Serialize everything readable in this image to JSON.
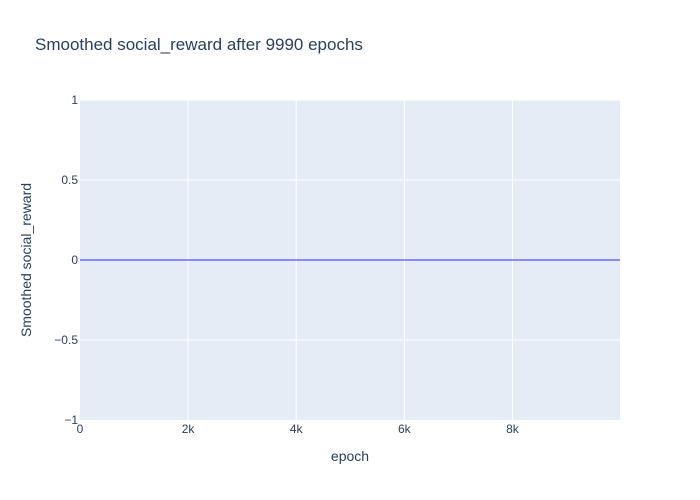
{
  "chart_data": {
    "type": "line",
    "title": "Smoothed social_reward after 9990 epochs",
    "xlabel": "epoch",
    "ylabel": "Smoothed social_reward",
    "xlim": [
      0,
      9990
    ],
    "ylim": [
      -1,
      1
    ],
    "x_ticks": [
      0,
      2000,
      4000,
      6000,
      8000
    ],
    "x_tick_labels": [
      "0",
      "2k",
      "4k",
      "6k",
      "8k"
    ],
    "y_ticks": [
      1,
      0.5,
      0,
      -0.5,
      -1
    ],
    "y_tick_labels": [
      "1",
      "0.5",
      "0",
      "−0.5",
      "−1"
    ],
    "grid": true,
    "colors": {
      "plot_bg": "#e5ecf6",
      "grid": "#ffffff",
      "line": "#636efa",
      "text": "#2a3f5f"
    },
    "series": [
      {
        "x": [
          0,
          9990
        ],
        "y": [
          0,
          0
        ]
      }
    ]
  }
}
